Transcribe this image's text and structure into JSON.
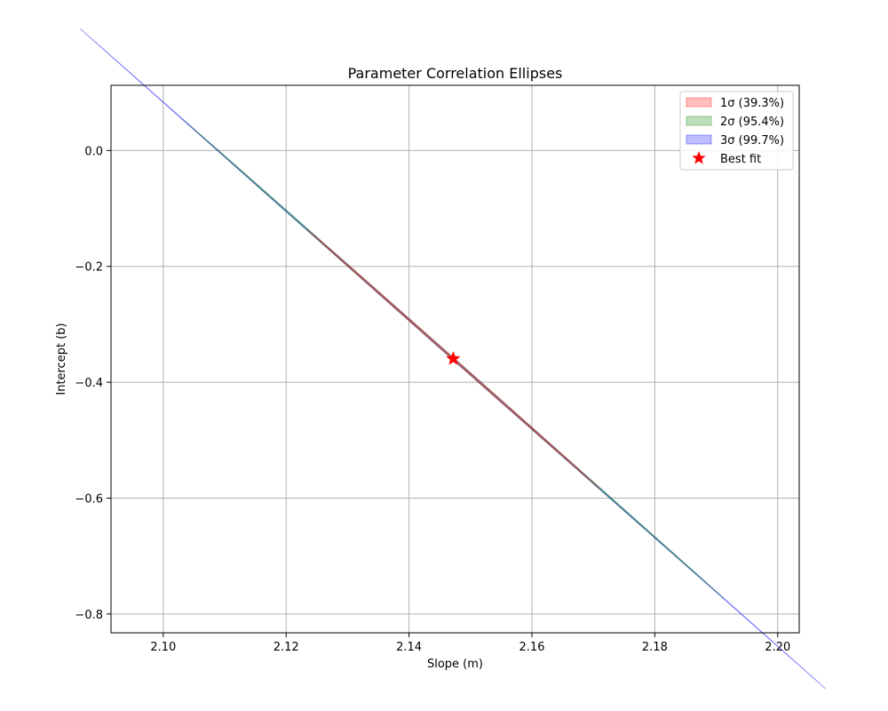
{
  "chart_data": {
    "type": "scatter",
    "title": "Parameter Correlation Ellipses",
    "xlabel": "Slope (m)",
    "ylabel": "Intercept (b)",
    "xlim": [
      2.0915,
      2.2035
    ],
    "ylim": [
      -0.8325,
      0.1125
    ],
    "xticks": [
      2.1,
      2.12,
      2.14,
      2.16,
      2.18,
      2.2
    ],
    "xtick_labels": [
      "2.10",
      "2.12",
      "2.14",
      "2.16",
      "2.18",
      "2.20"
    ],
    "yticks": [
      0.0,
      -0.2,
      -0.4,
      -0.6,
      -0.8
    ],
    "ytick_labels": [
      "0.0",
      "−0.2",
      "−0.4",
      "−0.6",
      "−0.8"
    ],
    "grid": true,
    "legend_position": "top-right",
    "best_fit": {
      "label": "Best fit",
      "x": 2.1472,
      "y": -0.3595,
      "color": "#ff0000",
      "marker": "star"
    },
    "ellipses": [
      {
        "label": "3σ (99.7%)",
        "color": "#0000ff",
        "opacity": 0.26,
        "edge_opacity": 0.35,
        "center": [
          2.1472,
          -0.3595
        ],
        "extent_x": [
          2.0942,
          2.2001
        ],
        "extent_y": [
          -0.8051,
          0.0862
        ],
        "angle_deg": -42,
        "semi_major": 0.3995,
        "semi_minor": 0.0257
      },
      {
        "label": "2σ (95.4%)",
        "color": "#008000",
        "opacity": 0.26,
        "edge_opacity": 0.35,
        "center": [
          2.1472,
          -0.3595
        ],
        "extent_x": [
          2.1087,
          2.1857
        ],
        "extent_y": [
          -0.6835,
          -0.0355
        ],
        "angle_deg": -42,
        "semi_major": 0.2907,
        "semi_minor": 0.0187
      },
      {
        "label": "1σ (39.3%)",
        "color": "#ff0000",
        "opacity": 0.26,
        "edge_opacity": 0.35,
        "center": [
          2.1472,
          -0.3595
        ],
        "extent_x": [
          2.1263,
          2.1681
        ],
        "extent_y": [
          -0.5355,
          -0.1835
        ],
        "angle_deg": -42,
        "semi_major": 0.1578,
        "semi_minor": 0.0101
      }
    ],
    "legend": [
      {
        "label": "1σ (39.3%)",
        "kind": "patch",
        "color": "#ff0000"
      },
      {
        "label": "2σ (95.4%)",
        "kind": "patch",
        "color": "#008000"
      },
      {
        "label": "3σ (99.7%)",
        "kind": "patch",
        "color": "#0000ff"
      },
      {
        "label": "Best fit",
        "kind": "star",
        "color": "#ff0000"
      }
    ]
  }
}
